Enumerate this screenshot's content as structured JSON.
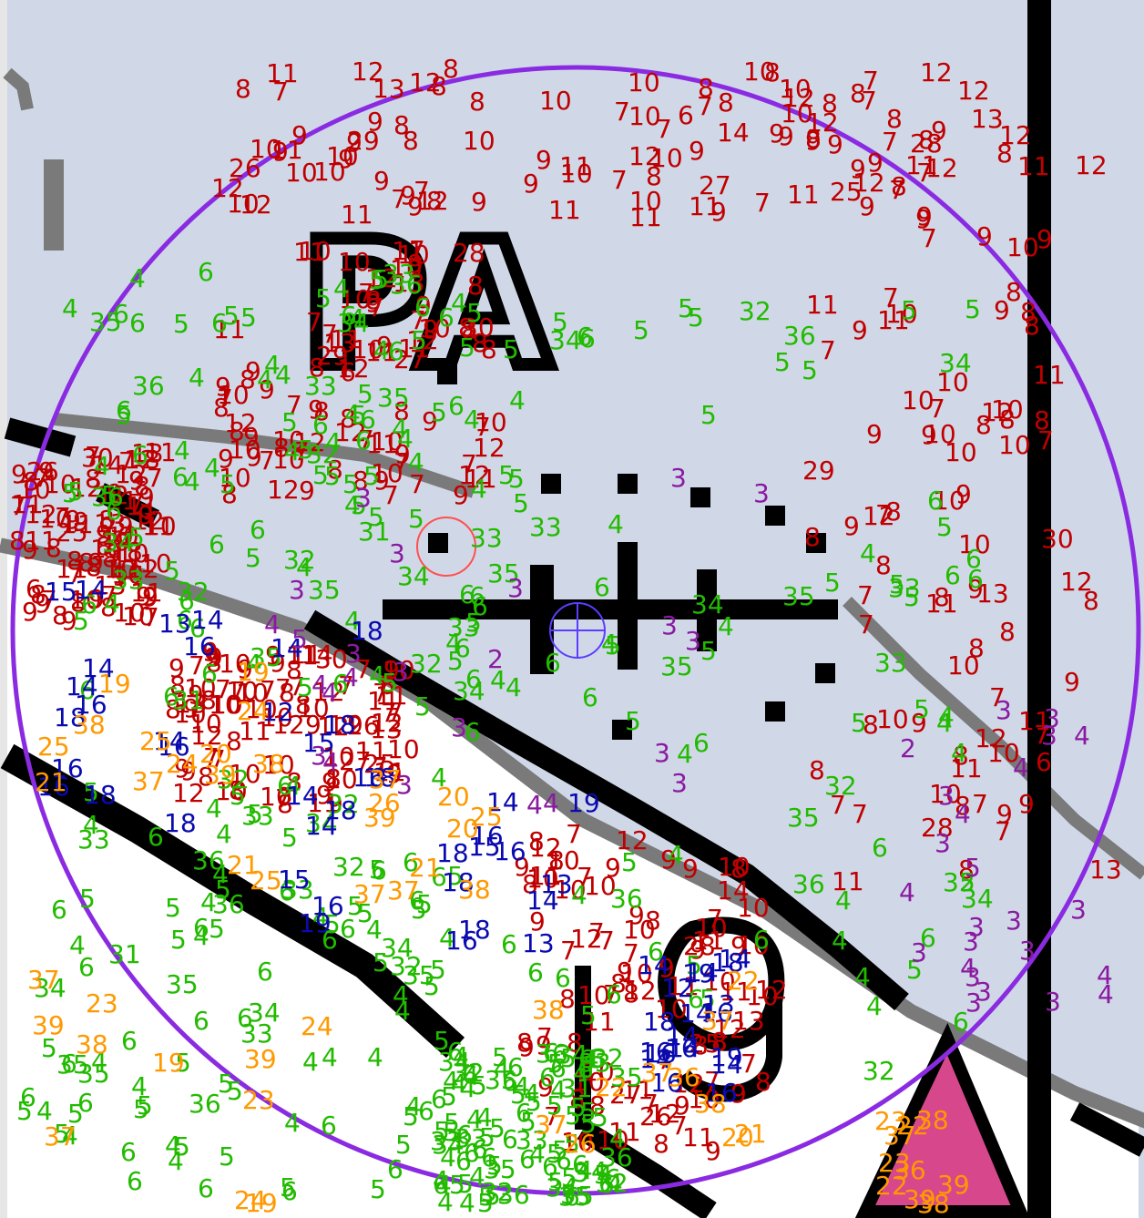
{
  "map": {
    "background_land": "#d0d8e8",
    "background_water": "#ffffff",
    "colors": {
      "red": "#c00000",
      "green": "#22bb00",
      "blue": "#0a0ab0",
      "purple": "#8a1aa0",
      "orange": "#ff9900",
      "circle": "#8a2be2",
      "marker_red": "#ff5050",
      "marker_blue": "#5b3dff",
      "road_black": "#000000",
      "road_grey": "#7a7a7a",
      "pink_fill": "#d6478c"
    },
    "place_label": "PA",
    "road_number": "19",
    "search_circle": {
      "description": "selection circle"
    },
    "layers": {
      "red": [
        "6",
        "7",
        "8",
        "9",
        "10",
        "11",
        "12",
        "7",
        "8",
        "9",
        "10",
        "9",
        "8",
        "7",
        "10",
        "9",
        "8",
        "7",
        "8",
        "9",
        "10",
        "7",
        "8",
        "9",
        "10",
        "11",
        "8",
        "9",
        "10",
        "12",
        "13",
        "11",
        "10",
        "12",
        "9",
        "7",
        "8",
        "9",
        "10",
        "11",
        "7",
        "8",
        "9",
        "8",
        "10",
        "12",
        "10",
        "12",
        "10",
        "7",
        "8",
        "9",
        "10",
        "11",
        "12",
        "8",
        "9",
        "7",
        "8",
        "9",
        "10",
        "11",
        "7",
        "10",
        "12",
        "7",
        "8",
        "9",
        "10",
        "11",
        "10",
        "12",
        "9",
        "10",
        "8",
        "11",
        "12",
        "7",
        "8",
        "9",
        "25",
        "26",
        "27",
        "28",
        "29",
        "30",
        "7",
        "9",
        "7",
        "8",
        "9",
        "7",
        "8",
        "9",
        "10",
        "7",
        "8",
        "9",
        "10",
        "11",
        "8",
        "9",
        "10",
        "11",
        "12",
        "9",
        "10",
        "11",
        "12",
        "13",
        "7",
        "8",
        "9",
        "10",
        "11",
        "12",
        "13",
        "14",
        "7",
        "8",
        "9",
        "7",
        "8",
        "9",
        "10",
        "7",
        "8",
        "9",
        "10",
        "11",
        "7",
        "8",
        "9"
      ],
      "green": [
        "6",
        "5",
        "4",
        "5",
        "6",
        "5",
        "4",
        "5",
        "6",
        "5",
        "4",
        "5",
        "6",
        "5",
        "4",
        "6",
        "5",
        "4",
        "5",
        "6",
        "5",
        "4",
        "5",
        "6",
        "5",
        "4",
        "6",
        "5",
        "4",
        "5",
        "6",
        "5",
        "4",
        "5",
        "6",
        "5",
        "6",
        "5",
        "4",
        "5",
        "6",
        "32",
        "33",
        "34",
        "35",
        "36",
        "35",
        "34",
        "33",
        "32",
        "31",
        "36",
        "35",
        "34",
        "33",
        "32",
        "36",
        "35",
        "34",
        "33",
        "32",
        "4",
        "5",
        "6",
        "4",
        "5",
        "6",
        "4",
        "5",
        "6",
        "4",
        "5",
        "6",
        "4",
        "5",
        "6",
        "4",
        "5",
        "6",
        "4",
        "5",
        "6",
        "4",
        "5",
        "6",
        "4",
        "5",
        "6",
        "4",
        "5",
        "6",
        "4",
        "5",
        "6",
        "4",
        "5",
        "6",
        "4",
        "5",
        "6",
        "4",
        "5",
        "6"
      ],
      "blue": [
        "15",
        "16",
        "14",
        "16",
        "14",
        "16",
        "13",
        "14",
        "16",
        "18",
        "19",
        "14",
        "18",
        "13",
        "12",
        "14",
        "16",
        "16",
        "18",
        "14",
        "18",
        "15",
        "16",
        "14",
        "18",
        "19",
        "14",
        "16",
        "18",
        "14"
      ],
      "purple": [
        "3",
        "4",
        "3",
        "2",
        "3",
        "4",
        "3",
        "3",
        "4",
        "5",
        "3",
        "4",
        "3",
        "3",
        "4",
        "3",
        "3",
        "4",
        "3",
        "3",
        "3",
        "4",
        "3",
        "3"
      ],
      "orange": [
        "19",
        "20",
        "21",
        "22",
        "23",
        "24",
        "25",
        "37",
        "38",
        "39",
        "37",
        "38",
        "37",
        "36",
        "37",
        "38",
        "39",
        "37",
        "38",
        "39",
        "19",
        "21",
        "20",
        "22",
        "23",
        "24",
        "25",
        "26"
      ]
    }
  }
}
